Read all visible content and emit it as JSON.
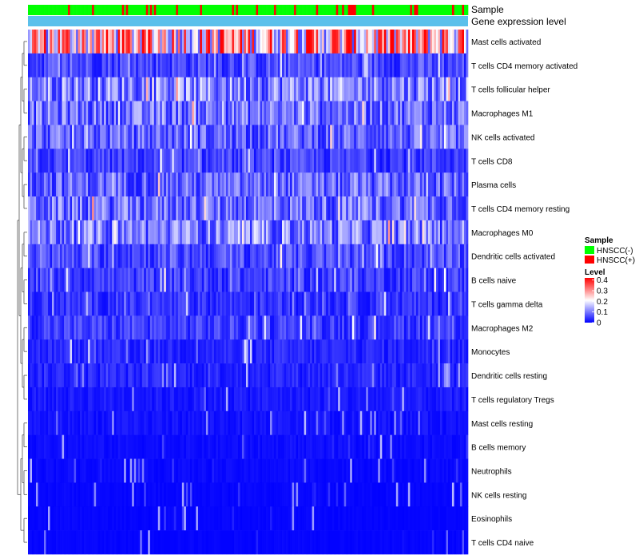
{
  "chart_data": {
    "type": "heatmap",
    "title": "",
    "row_labels": [
      "Mast cells activated",
      "T cells CD4 memory activated",
      "T cells follicular helper",
      "Macrophages M1",
      "NK cells activated",
      "T cells CD8",
      "Plasma cells",
      "T cells CD4 memory resting",
      "Macrophages M0",
      "Dendritic cells activated",
      "B cells naive",
      "T cells gamma delta",
      "Macrophages M2",
      "Monocytes",
      "Dendritic cells resting",
      "T cells regulatory  Tregs",
      "Mast cells resting",
      "B cells memory",
      "Neutrophils",
      "NK cells resting",
      "Eosinophils",
      "T cells CD4 naive"
    ],
    "row_mean_levels": [
      0.26,
      0.06,
      0.11,
      0.09,
      0.08,
      0.05,
      0.08,
      0.09,
      0.1,
      0.06,
      0.05,
      0.04,
      0.05,
      0.03,
      0.03,
      0.02,
      0.015,
      0.01,
      0.008,
      0.005,
      0.004,
      0.004
    ],
    "n_samples": 220,
    "column_annotations": {
      "top_track_label": "Sample",
      "second_track_label": "Gene expression level"
    },
    "legend": {
      "sample_title": "Sample",
      "sample_entries": [
        {
          "label": "HNSCC(-)",
          "color": "#00ff00"
        },
        {
          "label": "HNSCC(+)",
          "color": "#ff0000"
        }
      ],
      "level_title": "Level",
      "level_ticks": [
        {
          "label": "0.4",
          "value": 0.4
        },
        {
          "label": "0.3",
          "value": 0.3
        },
        {
          "label": "0.2",
          "value": 0.2
        },
        {
          "label": "0.1",
          "value": 0.1
        },
        {
          "label": "0",
          "value": 0
        }
      ],
      "level_range": [
        0,
        0.42
      ]
    },
    "colors": {
      "low": "#0000ff",
      "mid": "#ffffff",
      "high": "#ff0000",
      "expression_track": "#5bc0eb",
      "sample_negative": "#00ff00",
      "sample_positive": "#ff0000"
    }
  }
}
